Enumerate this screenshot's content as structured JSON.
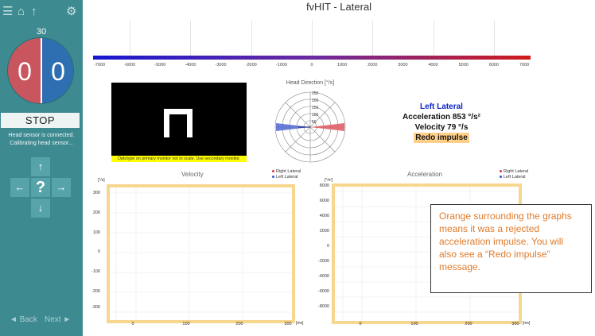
{
  "app": {
    "title": "fvHIT - Lateral"
  },
  "sidebar": {
    "icons": [
      "menu-icon",
      "home-icon",
      "up-arrow-icon",
      "gear-icon"
    ],
    "counter": "30",
    "score_left": "0",
    "score_right": "0",
    "stop_label": "STOP",
    "status_line1": "Head sensor is connected.",
    "status_line2": "Calibrating head sensor...",
    "dpad": {
      "up": "↑",
      "left": "←",
      "center": "?",
      "right": "→",
      "down": "↓"
    },
    "back_label": "◄ Back",
    "next_label": "Next ►"
  },
  "velocity_scale": {
    "ticks": [
      "-7000",
      "-6000",
      "-5000",
      "-4000",
      "-3000",
      "-2000",
      "-1000",
      "0",
      "1000",
      "2000",
      "3000",
      "4000",
      "5000",
      "6000",
      "7000"
    ]
  },
  "optotype": {
    "warning": "Optotype on primary monitor not to scale. Use secondary monitor."
  },
  "head_direction": {
    "title": "Head Direction [°/s]",
    "rings": [
      "250",
      "200",
      "150",
      "100",
      "50"
    ]
  },
  "impulse": {
    "side": "Left Lateral",
    "acceleration": "Acceleration 853 °/s²",
    "velocity": "Velocity 79 °/s",
    "redo": "Redo impulse"
  },
  "charts": [
    {
      "title": "Velocity",
      "unit_y": "[°/s]",
      "unit_x": "[ms]",
      "y_ticks": [
        "300",
        "200",
        "100",
        "0",
        "-100",
        "-200",
        "-300"
      ],
      "x_ticks": [
        "0",
        "100",
        "200",
        "300"
      ],
      "legend": [
        "Right Lateral",
        "Left Lateral"
      ],
      "legend_colors": [
        "#d9363e",
        "#2f56c8"
      ]
    },
    {
      "title": "Acceleration",
      "unit_y": "[°/s²]",
      "unit_x": "[ms]",
      "y_ticks": [
        "8000",
        "6000",
        "4000",
        "2000",
        "0",
        "-2000",
        "-4000",
        "-6000",
        "-8000"
      ],
      "x_ticks": [
        "0",
        "100",
        "200",
        "300"
      ],
      "legend": [
        "Right Lateral",
        "Left Lateral"
      ],
      "legend_colors": [
        "#d9363e",
        "#2f56c8"
      ]
    }
  ],
  "annotation": {
    "text": "Orange surrounding the graphs means it was a rejected acceleration impulse. You will also see a “Redo impulse” message."
  }
}
